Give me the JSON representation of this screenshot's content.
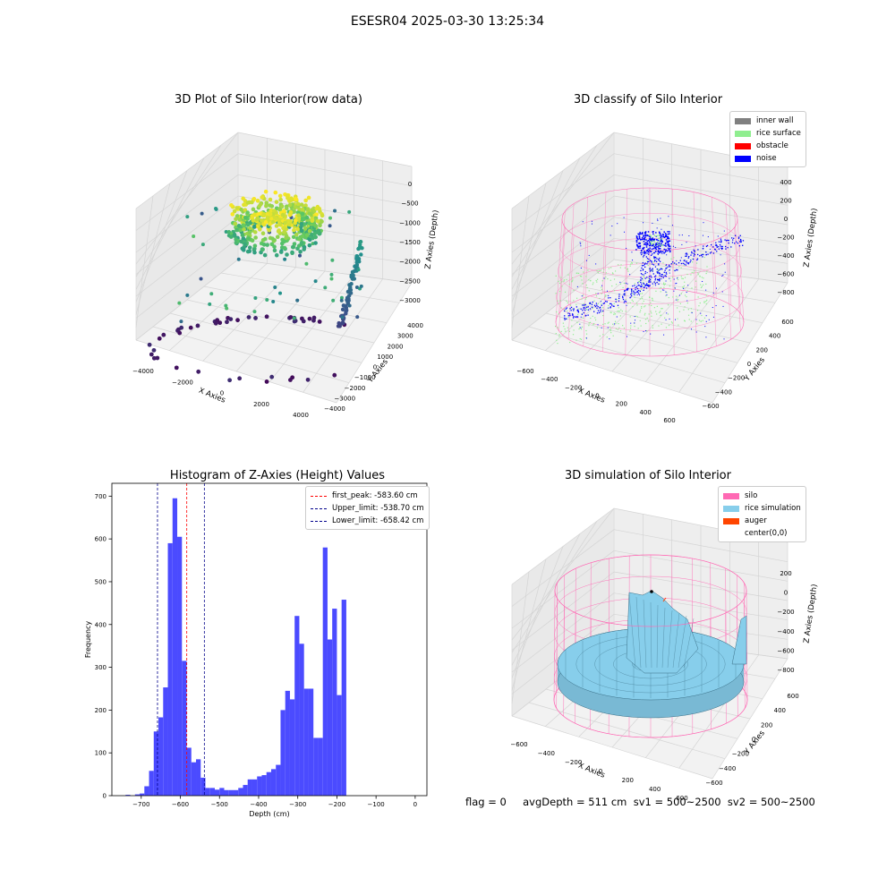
{
  "suptitle": "ESESR04 2025-03-30 13:25:34",
  "footer": "flag = 0     avgDepth = 511 cm  sv1 = 500~2500  sv2 = 500~2500",
  "colors": {
    "hist_bar": "#4b4bff",
    "first_peak": "#ff0000",
    "limit_lines": "#00008b",
    "inner_wall": "#808080",
    "rice_surface": "#90ee90",
    "obstacle": "#ff0000",
    "noise": "#0000ff",
    "silo": "#ff69b4",
    "rice_simulation": "#87ceeb",
    "auger": "#ff4500"
  },
  "chart_data": [
    {
      "type": "scatter",
      "title": "3D Plot of Silo Interior(row data)",
      "xlabel": "X Axies",
      "ylabel": "Y Axies",
      "zlabel": "Z Axies (Depth)",
      "x_ticks": [
        "−4000",
        "−2000",
        "0",
        "2000",
        "4000"
      ],
      "y_ticks": [
        "−4000",
        "−3000",
        "−2000",
        "−1000",
        "0",
        "1000",
        "2000",
        "3000",
        "4000"
      ],
      "z_ticks": [
        "−3000",
        "−2500",
        "−2000",
        "−1500",
        "−1000",
        "−500",
        "0"
      ],
      "colormap": "viridis"
    },
    {
      "type": "scatter",
      "title": "3D classify of Silo Interior",
      "xlabel": "X Axies",
      "ylabel": "Y Axies",
      "zlabel": "Z Axies (Depth)",
      "x_ticks": [
        "−600",
        "−400",
        "−200",
        "0",
        "200",
        "400",
        "600"
      ],
      "y_ticks": [
        "−600",
        "−400",
        "−200",
        "0",
        "200",
        "400",
        "600"
      ],
      "z_ticks": [
        "−800",
        "−600",
        "−400",
        "−200",
        "0",
        "200",
        "400"
      ],
      "legend": [
        "inner wall",
        "rice surface",
        "obstacle",
        "noise"
      ]
    },
    {
      "type": "bar",
      "title": "Histogram of Z-Axies (Height) Values",
      "xlabel": "Depth (cm)",
      "ylabel": "Frequency",
      "xlim": [
        -775,
        30
      ],
      "ylim": [
        0,
        730
      ],
      "x_ticks": [
        -700,
        -600,
        -500,
        -400,
        -300,
        -200,
        -100,
        0
      ],
      "y_ticks": [
        0,
        100,
        200,
        300,
        400,
        500,
        600,
        700
      ],
      "bin_start": -740,
      "bin_width": 12,
      "values": [
        2,
        0,
        3,
        5,
        22,
        58,
        150,
        183,
        253,
        590,
        695,
        605,
        315,
        112,
        78,
        85,
        42,
        18,
        18,
        14,
        18,
        13,
        13,
        13,
        18,
        25,
        38,
        38,
        45,
        48,
        55,
        62,
        72,
        200,
        245,
        225,
        420,
        355,
        250,
        250,
        135,
        135,
        580,
        365,
        437,
        235,
        458
      ],
      "vlines": [
        {
          "label": "first_peak: -583.60 cm",
          "x": -583.6,
          "color_key": "first_peak"
        },
        {
          "label": "Upper_limit: -538.70 cm",
          "x": -538.7,
          "color_key": "limit_lines"
        },
        {
          "label": "Lower_limit: -658.42 cm",
          "x": -658.42,
          "color_key": "limit_lines"
        }
      ],
      "legend_position": "upper right"
    },
    {
      "type": "surface",
      "title": "3D simulation of Silo Interior",
      "xlabel": "X Axies",
      "ylabel": "Y Axies",
      "zlabel": "Z Axies (Depth)",
      "x_ticks": [
        "−600",
        "−400",
        "−200",
        "0",
        "200",
        "400",
        "600"
      ],
      "y_ticks": [
        "−600",
        "−400",
        "−200",
        "0",
        "200",
        "400",
        "600"
      ],
      "z_ticks": [
        "−800",
        "−600",
        "−400",
        "−200",
        "0",
        "200"
      ],
      "legend": [
        "silo",
        "rice simulation",
        "auger",
        "center(0,0)"
      ]
    }
  ]
}
